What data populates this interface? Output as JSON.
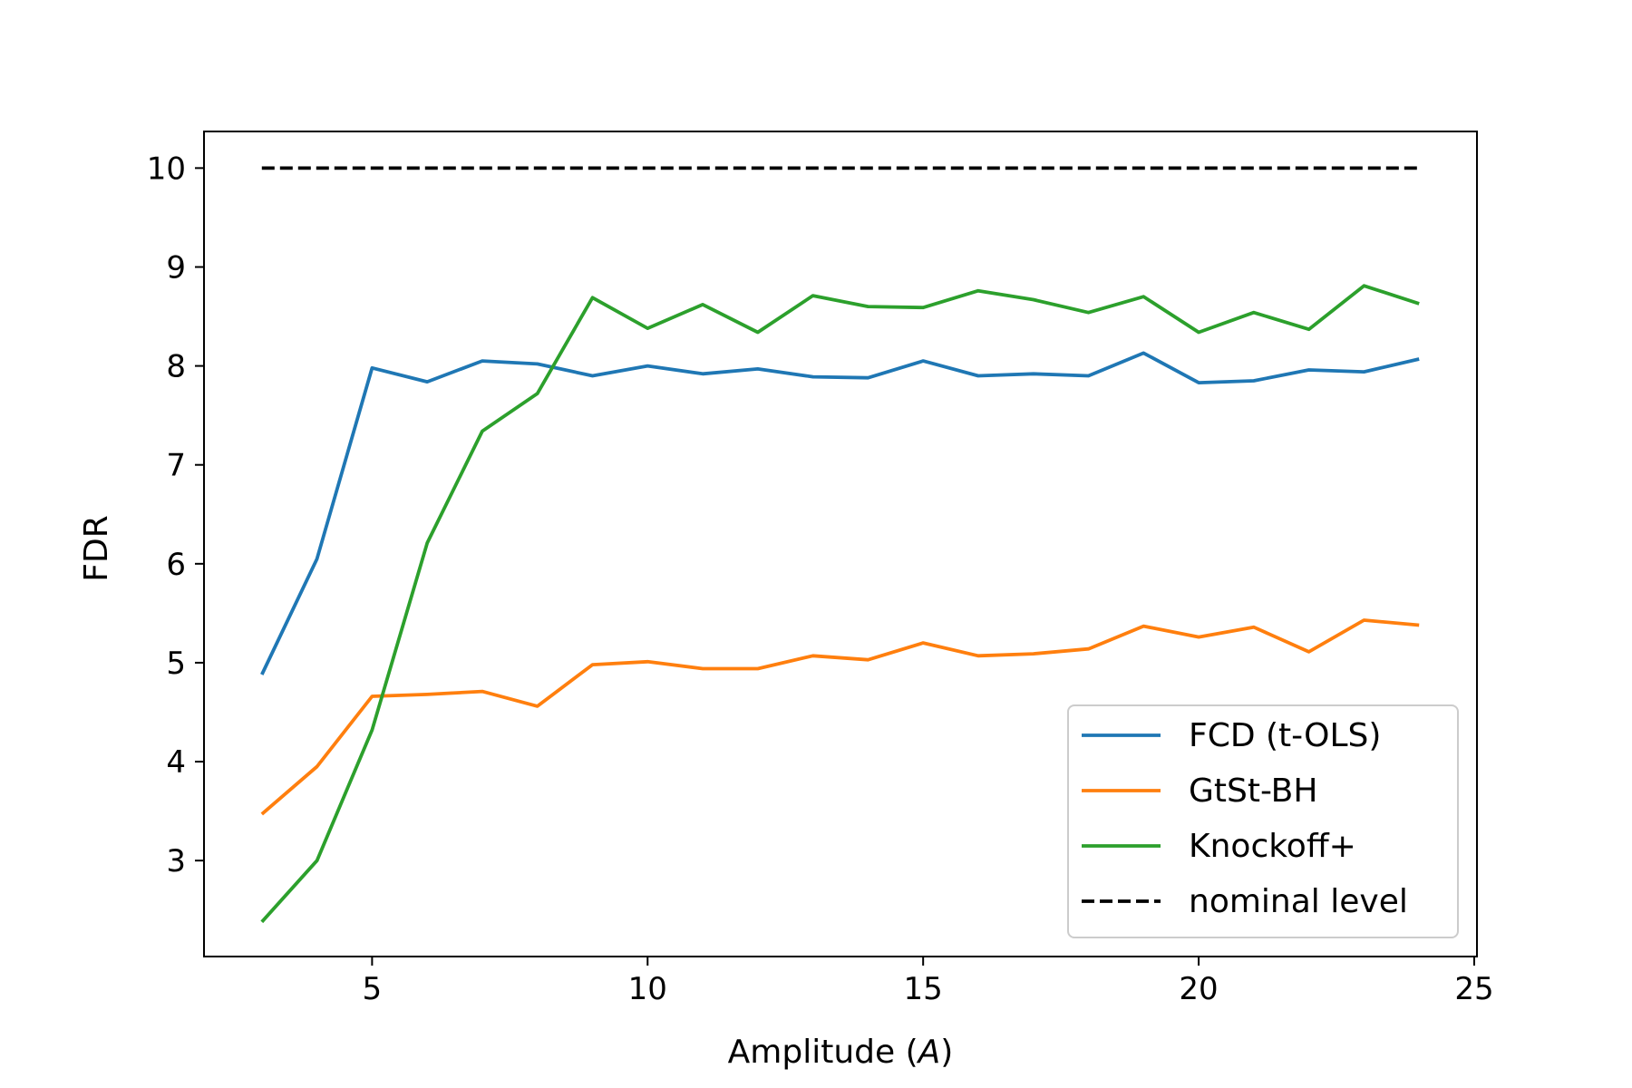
{
  "chart_data": {
    "type": "line",
    "title": "",
    "xlabel_prefix": "Amplitude (",
    "xlabel_var": "A",
    "xlabel_suffix": ")",
    "ylabel": "FDR",
    "xlim": [
      1.95,
      25.05
    ],
    "ylim": [
      2.03,
      10.37
    ],
    "xticks": [
      5,
      10,
      15,
      20,
      25
    ],
    "yticks": [
      3,
      4,
      5,
      6,
      7,
      8,
      9,
      10
    ],
    "x": [
      3,
      4,
      5,
      6,
      7,
      8,
      9,
      10,
      11,
      12,
      13,
      14,
      15,
      16,
      17,
      18,
      19,
      20,
      21,
      22,
      23,
      24
    ],
    "series": [
      {
        "name": "FCD (t-OLS)",
        "color": "#1f77b4",
        "dashed": false,
        "values": [
          4.88,
          6.05,
          7.98,
          7.84,
          8.05,
          8.02,
          7.9,
          8.0,
          7.92,
          7.97,
          7.89,
          7.88,
          8.05,
          7.9,
          7.92,
          7.9,
          8.13,
          7.83,
          7.85,
          7.96,
          7.94,
          8.07
        ]
      },
      {
        "name": "GtSt-BH",
        "color": "#ff7f0e",
        "dashed": false,
        "values": [
          3.47,
          3.95,
          4.66,
          4.68,
          4.71,
          4.56,
          4.98,
          5.01,
          4.94,
          4.94,
          5.07,
          5.03,
          5.2,
          5.07,
          5.09,
          5.14,
          5.37,
          5.26,
          5.36,
          5.11,
          5.43,
          5.38
        ]
      },
      {
        "name": "Knockoff+",
        "color": "#2ca02c",
        "dashed": false,
        "values": [
          2.38,
          3.0,
          4.32,
          6.21,
          7.34,
          7.72,
          8.69,
          8.38,
          8.62,
          8.34,
          8.71,
          8.6,
          8.59,
          8.76,
          8.67,
          8.54,
          8.7,
          8.34,
          8.54,
          8.37,
          8.81,
          8.63
        ]
      },
      {
        "name": "nominal level",
        "color": "#000000",
        "dashed": true,
        "values": [
          10,
          10,
          10,
          10,
          10,
          10,
          10,
          10,
          10,
          10,
          10,
          10,
          10,
          10,
          10,
          10,
          10,
          10,
          10,
          10,
          10,
          10
        ]
      }
    ],
    "legend_position": "lower-right"
  }
}
